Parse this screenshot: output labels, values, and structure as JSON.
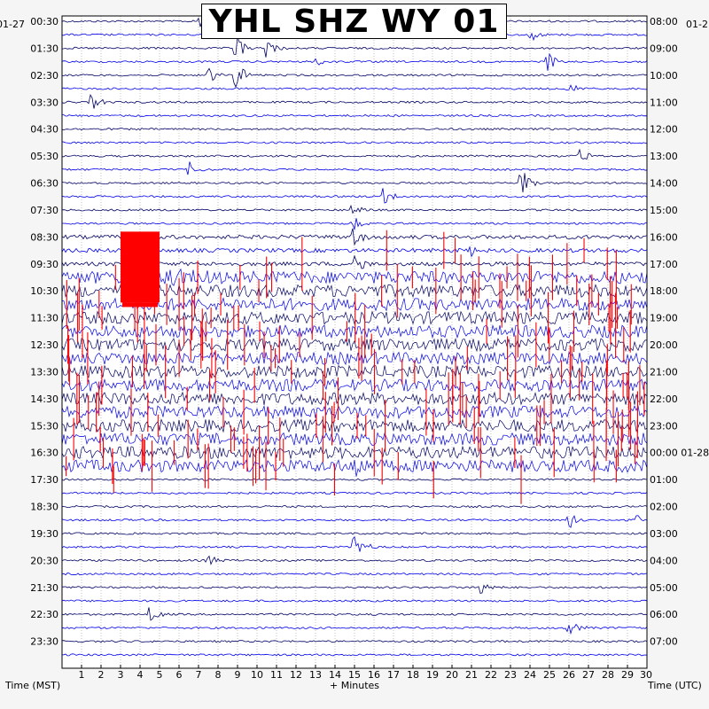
{
  "chart_data": {
    "type": "helicorder",
    "title": "YHL SHZ WY 01",
    "date_left": "01-27",
    "date_right_top": "01-2",
    "left_hour_labels": [
      "00:30",
      "01:30",
      "02:30",
      "03:30",
      "04:30",
      "05:30",
      "06:30",
      "07:30",
      "08:30",
      "09:30",
      "10:30",
      "11:30",
      "12:30",
      "13:30",
      "14:30",
      "15:30",
      "16:30",
      "17:30",
      "18:30",
      "19:30",
      "20:30",
      "21:30",
      "22:30",
      "23:30"
    ],
    "right_hour_labels": [
      "08:00",
      "09:00",
      "10:00",
      "11:00",
      "12:00",
      "13:00",
      "14:00",
      "15:00",
      "16:00",
      "17:00",
      "18:00",
      "19:00",
      "20:00",
      "21:00",
      "22:00",
      "23:00",
      "00:00 01-28",
      "01:00",
      "02:00",
      "03:00",
      "04:00",
      "05:00",
      "06:00",
      "07:00"
    ],
    "x_ticks": [
      1,
      2,
      3,
      4,
      5,
      6,
      7,
      8,
      9,
      10,
      11,
      12,
      13,
      14,
      15,
      16,
      17,
      18,
      19,
      20,
      21,
      22,
      23,
      24,
      25,
      26,
      27,
      28,
      29,
      30
    ],
    "xlim": [
      0,
      30
    ],
    "rows_total": 48,
    "xlabel": "+ Minutes",
    "left_axis_label": "Time (MST)",
    "right_axis_label": "Time (UTC)",
    "trace_colors": [
      "#000066",
      "#0000ee"
    ],
    "clip_color": "#ff0000",
    "grid": true,
    "noisy_rows_range": [
      19,
      33
    ],
    "clipped_block": {
      "row_start": 16,
      "row_end": 21,
      "minute_start": 3.0,
      "minute_end": 5.0
    },
    "events": [
      {
        "row": 0,
        "minute": 7.0,
        "amp": 0.6
      },
      {
        "row": 1,
        "minute": 24.0,
        "amp": 0.7
      },
      {
        "row": 2,
        "minute": 8.9,
        "amp": 1.3
      },
      {
        "row": 2,
        "minute": 10.5,
        "amp": 1.0
      },
      {
        "row": 3,
        "minute": 24.8,
        "amp": 1.5
      },
      {
        "row": 3,
        "minute": 13.0,
        "amp": 0.6
      },
      {
        "row": 4,
        "minute": 8.9,
        "amp": 1.5
      },
      {
        "row": 4,
        "minute": 7.5,
        "amp": 0.8
      },
      {
        "row": 5,
        "minute": 26.0,
        "amp": 0.6
      },
      {
        "row": 6,
        "minute": 1.5,
        "amp": 0.8
      },
      {
        "row": 10,
        "minute": 26.5,
        "amp": 1.0
      },
      {
        "row": 11,
        "minute": 6.5,
        "amp": 0.6
      },
      {
        "row": 12,
        "minute": 23.5,
        "amp": 1.6
      },
      {
        "row": 13,
        "minute": 16.5,
        "amp": 1.0
      },
      {
        "row": 14,
        "minute": 14.8,
        "amp": 0.8
      },
      {
        "row": 15,
        "minute": 14.9,
        "amp": 0.9
      },
      {
        "row": 16,
        "minute": 14.9,
        "amp": 0.9
      },
      {
        "row": 17,
        "minute": 21.0,
        "amp": 0.5
      },
      {
        "row": 18,
        "minute": 14.9,
        "amp": 1.5
      },
      {
        "row": 33,
        "minute": 15.0,
        "amp": 1.0
      },
      {
        "row": 37,
        "minute": 26.0,
        "amp": 0.8
      },
      {
        "row": 37,
        "minute": 29.5,
        "amp": 0.6
      },
      {
        "row": 39,
        "minute": 15.0,
        "amp": 1.6
      },
      {
        "row": 40,
        "minute": 7.5,
        "amp": 0.6
      },
      {
        "row": 42,
        "minute": 21.5,
        "amp": 0.8
      },
      {
        "row": 44,
        "minute": 4.5,
        "amp": 0.8
      },
      {
        "row": 45,
        "minute": 26.0,
        "amp": 1.0
      }
    ]
  }
}
